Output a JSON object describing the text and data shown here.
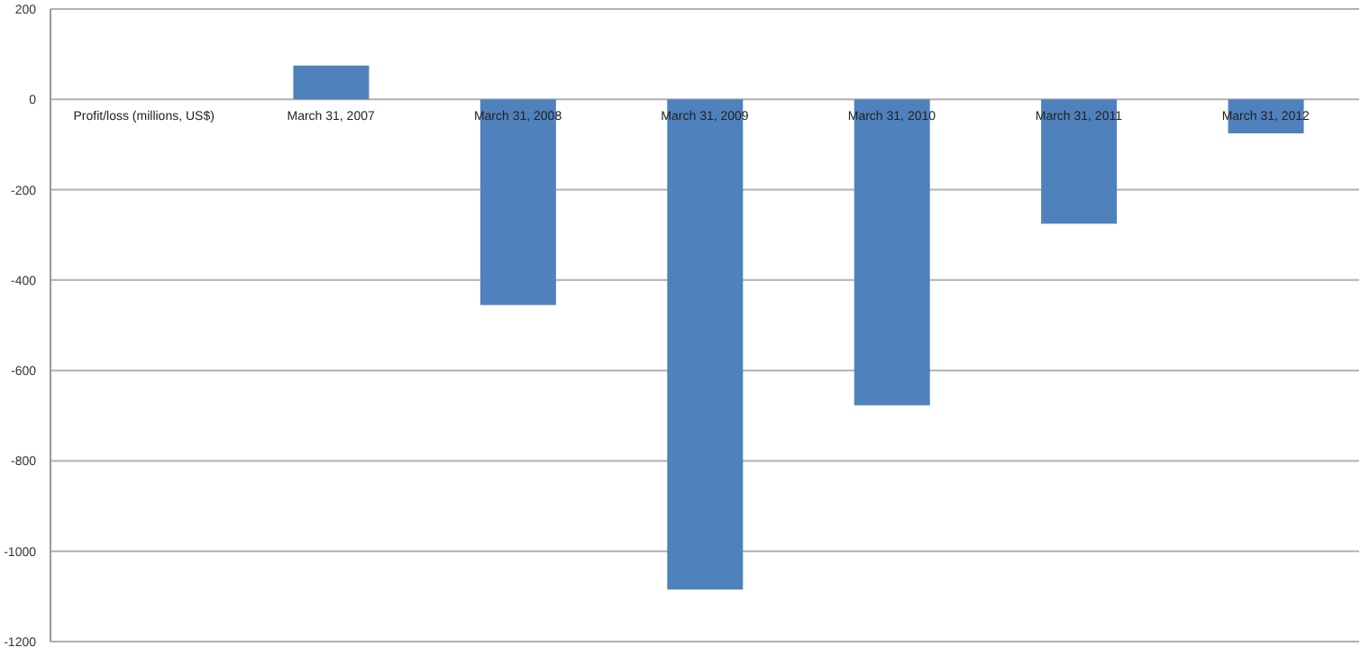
{
  "chart_data": {
    "type": "bar",
    "categories": [
      "Profit/loss (millions, US$)",
      "March 31, 2007",
      "March 31, 2008",
      "March 31, 2009",
      "March 31, 2010",
      "March 31, 2011",
      "March 31, 2012"
    ],
    "values": [
      null,
      75,
      -455,
      -1085,
      -677,
      -275,
      -75
    ],
    "color": "#4f81bd",
    "ylim": [
      -1200,
      200
    ],
    "yticks": [
      -1200,
      -1000,
      -800,
      -600,
      -400,
      -200,
      0,
      200
    ],
    "grid": "y",
    "legend": false
  }
}
